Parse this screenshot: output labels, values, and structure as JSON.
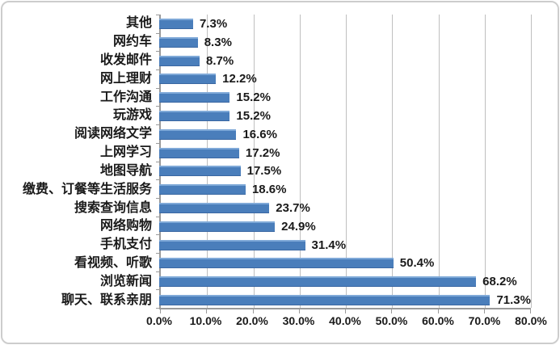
{
  "chart_data": {
    "type": "bar",
    "orientation": "horizontal",
    "title": "",
    "xlabel": "",
    "ylabel": "",
    "categories": [
      "其他",
      "网约车",
      "收发邮件",
      "网上理财",
      "工作沟通",
      "玩游戏",
      "阅读网络文学",
      "上网学习",
      "地图导航",
      "缴费、订餐等生活服务",
      "搜索查询信息",
      "网络购物",
      "手机支付",
      "看视频、听歌",
      "浏览新闻",
      "聊天、联系亲朋"
    ],
    "values": [
      7.3,
      8.3,
      8.7,
      12.2,
      15.2,
      15.2,
      16.6,
      17.2,
      17.5,
      18.6,
      23.7,
      24.9,
      31.4,
      50.4,
      68.2,
      71.3
    ],
    "value_labels": [
      "7.3%",
      "8.3%",
      "8.7%",
      "12.2%",
      "15.2%",
      "15.2%",
      "16.6%",
      "17.2%",
      "17.5%",
      "18.6%",
      "23.7%",
      "24.9%",
      "31.4%",
      "50.4%",
      "68.2%",
      "71.3%"
    ],
    "xlim": [
      0,
      80
    ],
    "x_ticks": [
      "0.0%",
      "10.0%",
      "20.0%",
      "30.0%",
      "40.0%",
      "50.0%",
      "60.0%",
      "70.0%",
      "80.0%"
    ],
    "x_tick_values": [
      0,
      10,
      20,
      30,
      40,
      50,
      60,
      70,
      80
    ],
    "grid": "vertical gridlines at each x tick",
    "legend": "none"
  },
  "colors": {
    "bar_fill": "#4a7ebb",
    "bar_highlight": "#7fa9d8",
    "gridline": "#bfbfbf",
    "axis_line": "#9a9a9a",
    "text": "#1a1a1a",
    "frame_border": "#cdcdcd",
    "background": "#ffffff"
  }
}
